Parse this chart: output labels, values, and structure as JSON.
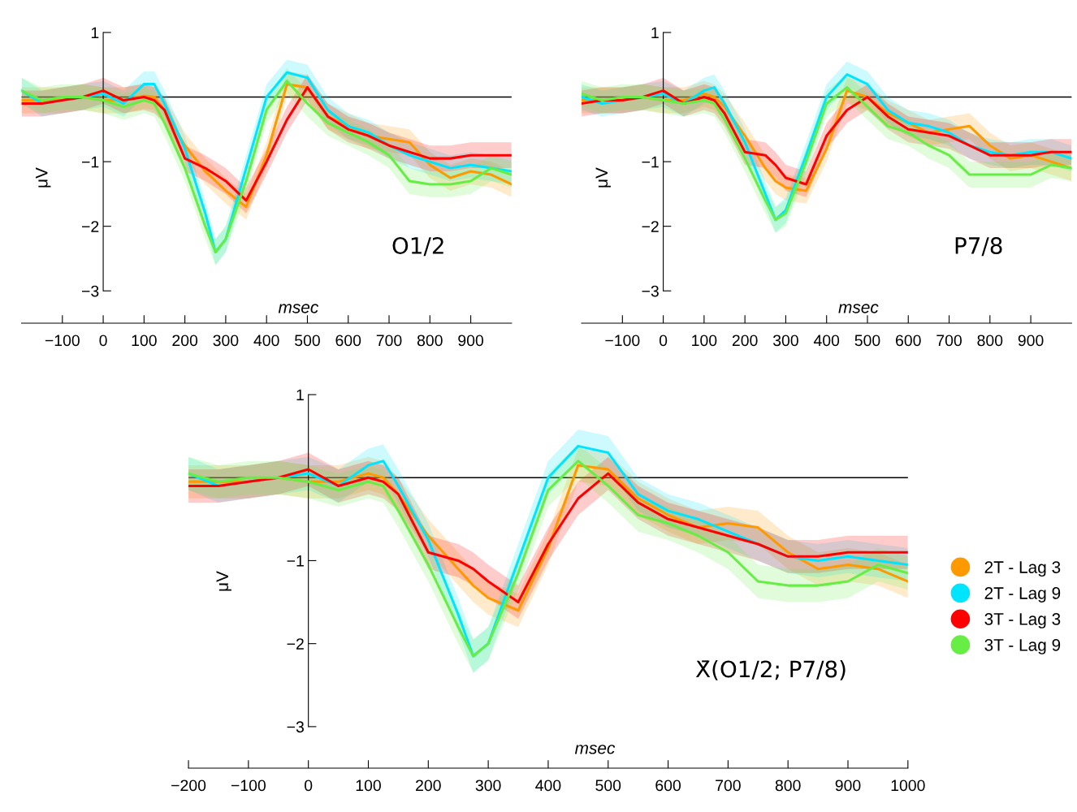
{
  "chart_data": [
    {
      "type": "line",
      "xlabel": "msec",
      "ylabel": "μV",
      "annotations": [
        "O1/2"
      ],
      "x": [
        -200,
        -150,
        -100,
        -50,
        0,
        50,
        100,
        125,
        150,
        200,
        250,
        275,
        300,
        350,
        400,
        450,
        500,
        550,
        600,
        650,
        700,
        750,
        800,
        850,
        900,
        950,
        1000
      ],
      "xlim": [
        -200,
        1000
      ],
      "xticks": [
        -100,
        0,
        100,
        200,
        300,
        400,
        500,
        600,
        700,
        800,
        900
      ],
      "ylim": [
        -3.5,
        1
      ],
      "yticks": [
        -3,
        -2,
        -1,
        1
      ],
      "ref_lines": [
        {
          "axis": "y",
          "value": 0,
          "color": "#000000"
        }
      ],
      "series": [
        {
          "color": "#ff9900",
          "values": [
            -0.05,
            -0.05,
            -0.05,
            0.0,
            -0.05,
            -0.05,
            0.02,
            0.0,
            -0.2,
            -0.75,
            -1.15,
            -1.3,
            -1.45,
            -1.7,
            -0.9,
            0.2,
            0.15,
            -0.3,
            -0.45,
            -0.6,
            -0.65,
            -0.7,
            -1.05,
            -1.25,
            -1.15,
            -1.2,
            -1.35
          ],
          "lower": [
            -0.25,
            -0.25,
            -0.25,
            -0.2,
            -0.25,
            -0.25,
            -0.18,
            -0.2,
            -0.4,
            -0.95,
            -1.35,
            -1.5,
            -1.65,
            -1.9,
            -1.1,
            0.0,
            -0.05,
            -0.5,
            -0.65,
            -0.8,
            -0.85,
            -0.9,
            -1.25,
            -1.45,
            -1.35,
            -1.4,
            -1.55
          ],
          "upper": [
            0.15,
            0.15,
            0.15,
            0.2,
            0.15,
            0.15,
            0.22,
            0.2,
            0.0,
            -0.55,
            -0.95,
            -1.1,
            -1.25,
            -1.5,
            -0.7,
            0.4,
            0.35,
            -0.1,
            -0.25,
            -0.4,
            -0.45,
            -0.5,
            -0.85,
            -1.05,
            -0.95,
            -1.0,
            -1.15
          ]
        },
        {
          "color": "#00e5ff",
          "values": [
            0.1,
            -0.1,
            -0.05,
            0.0,
            0.05,
            -0.1,
            0.2,
            0.2,
            -0.1,
            -0.8,
            -1.8,
            -2.4,
            -2.2,
            -1.1,
            0.0,
            0.38,
            0.3,
            -0.2,
            -0.45,
            -0.55,
            -0.75,
            -0.9,
            -1.0,
            -1.1,
            -1.05,
            -1.1,
            -1.15
          ],
          "lower": [
            -0.1,
            -0.3,
            -0.25,
            -0.2,
            -0.15,
            -0.3,
            0.0,
            0.0,
            -0.3,
            -1.0,
            -2.0,
            -2.6,
            -2.4,
            -1.3,
            -0.2,
            0.18,
            0.1,
            -0.4,
            -0.65,
            -0.75,
            -0.95,
            -1.1,
            -1.2,
            -1.3,
            -1.25,
            -1.3,
            -1.35
          ],
          "upper": [
            0.3,
            0.1,
            0.15,
            0.2,
            0.25,
            0.1,
            0.4,
            0.4,
            0.1,
            -0.6,
            -1.6,
            -2.2,
            -2.0,
            -0.9,
            0.2,
            0.58,
            0.5,
            0.0,
            -0.25,
            -0.35,
            -0.55,
            -0.7,
            -0.8,
            -0.9,
            -0.85,
            -0.9,
            -0.95
          ]
        },
        {
          "color": "#ff0000",
          "values": [
            -0.1,
            -0.1,
            -0.05,
            0.0,
            0.1,
            -0.05,
            0.0,
            -0.05,
            -0.2,
            -0.95,
            -1.1,
            -1.2,
            -1.3,
            -1.6,
            -1.0,
            -0.35,
            0.15,
            -0.3,
            -0.5,
            -0.6,
            -0.75,
            -0.85,
            -0.95,
            -0.95,
            -0.9,
            -0.9,
            -0.9
          ],
          "lower": [
            -0.3,
            -0.3,
            -0.25,
            -0.2,
            -0.1,
            -0.25,
            -0.2,
            -0.25,
            -0.4,
            -1.15,
            -1.3,
            -1.4,
            -1.5,
            -1.8,
            -1.2,
            -0.55,
            -0.05,
            -0.5,
            -0.7,
            -0.8,
            -0.95,
            -1.05,
            -1.15,
            -1.15,
            -1.1,
            -1.1,
            -1.1
          ],
          "upper": [
            0.1,
            0.1,
            0.15,
            0.2,
            0.3,
            0.15,
            0.2,
            0.15,
            0.0,
            -0.75,
            -0.9,
            -1.0,
            -1.1,
            -1.4,
            -0.8,
            -0.15,
            0.35,
            -0.1,
            -0.3,
            -0.4,
            -0.55,
            -0.65,
            -0.75,
            -0.75,
            -0.7,
            -0.7,
            -0.7
          ]
        },
        {
          "color": "#66ee44",
          "values": [
            0.1,
            -0.05,
            0.0,
            0.0,
            -0.05,
            -0.15,
            -0.05,
            -0.1,
            -0.4,
            -1.1,
            -2.0,
            -2.4,
            -2.2,
            -1.3,
            -0.2,
            0.25,
            -0.1,
            -0.4,
            -0.55,
            -0.7,
            -0.9,
            -1.3,
            -1.35,
            -1.35,
            -1.3,
            -1.1,
            -1.2
          ],
          "lower": [
            -0.1,
            -0.25,
            -0.2,
            -0.2,
            -0.25,
            -0.35,
            -0.25,
            -0.3,
            -0.6,
            -1.3,
            -2.2,
            -2.6,
            -2.4,
            -1.5,
            -0.4,
            0.05,
            -0.3,
            -0.6,
            -0.75,
            -0.9,
            -1.1,
            -1.5,
            -1.55,
            -1.55,
            -1.5,
            -1.3,
            -1.4
          ],
          "upper": [
            0.3,
            0.15,
            0.2,
            0.2,
            0.15,
            0.05,
            0.15,
            0.1,
            -0.2,
            -0.9,
            -1.8,
            -2.2,
            -2.0,
            -1.1,
            0.0,
            0.45,
            0.1,
            -0.2,
            -0.35,
            -0.5,
            -0.7,
            -1.1,
            -1.15,
            -1.15,
            -1.1,
            -0.9,
            -1.0
          ]
        }
      ]
    },
    {
      "type": "line",
      "xlabel": "msec",
      "ylabel": "μV",
      "annotations": [
        "P7/8"
      ],
      "x": [
        -200,
        -150,
        -100,
        -50,
        0,
        50,
        100,
        125,
        150,
        200,
        250,
        275,
        300,
        350,
        400,
        450,
        500,
        550,
        600,
        650,
        700,
        750,
        800,
        850,
        900,
        950,
        1000
      ],
      "xlim": [
        -200,
        1000
      ],
      "xticks": [
        -100,
        0,
        100,
        200,
        300,
        400,
        500,
        600,
        700,
        800,
        900
      ],
      "ylim": [
        -3.5,
        1
      ],
      "yticks": [
        -3,
        -2,
        -1,
        1
      ],
      "ref_lines": [
        {
          "axis": "y",
          "value": 0,
          "color": "#000000"
        }
      ],
      "series": [
        {
          "color": "#ff9900",
          "values": [
            -0.05,
            -0.05,
            -0.05,
            0.0,
            -0.05,
            -0.05,
            0.05,
            0.0,
            -0.15,
            -0.6,
            -1.1,
            -1.3,
            -1.4,
            -1.45,
            -0.8,
            0.1,
            0.0,
            -0.25,
            -0.4,
            -0.55,
            -0.5,
            -0.45,
            -0.75,
            -0.95,
            -0.9,
            -1.0,
            -1.1
          ],
          "lower": [
            -0.25,
            -0.25,
            -0.25,
            -0.2,
            -0.25,
            -0.25,
            -0.15,
            -0.2,
            -0.35,
            -0.8,
            -1.3,
            -1.5,
            -1.6,
            -1.65,
            -1.0,
            -0.1,
            -0.2,
            -0.45,
            -0.6,
            -0.75,
            -0.7,
            -0.65,
            -0.95,
            -1.15,
            -1.1,
            -1.2,
            -1.3
          ],
          "upper": [
            0.15,
            0.15,
            0.15,
            0.2,
            0.15,
            0.15,
            0.25,
            0.2,
            0.05,
            -0.4,
            -0.9,
            -1.1,
            -1.2,
            -1.25,
            -0.6,
            0.3,
            0.2,
            -0.05,
            -0.2,
            -0.35,
            -0.3,
            -0.25,
            -0.55,
            -0.75,
            -0.7,
            -0.8,
            -0.9
          ]
        },
        {
          "color": "#00e5ff",
          "values": [
            0.0,
            -0.1,
            -0.05,
            0.0,
            0.05,
            -0.1,
            0.1,
            0.15,
            -0.1,
            -0.7,
            -1.5,
            -1.9,
            -1.75,
            -0.9,
            0.0,
            0.35,
            0.2,
            -0.2,
            -0.4,
            -0.45,
            -0.55,
            -0.75,
            -0.85,
            -0.9,
            -0.85,
            -0.85,
            -0.95
          ],
          "lower": [
            -0.2,
            -0.3,
            -0.25,
            -0.2,
            -0.15,
            -0.3,
            -0.1,
            -0.05,
            -0.3,
            -0.9,
            -1.7,
            -2.1,
            -1.95,
            -1.1,
            -0.2,
            0.15,
            0.0,
            -0.4,
            -0.6,
            -0.65,
            -0.75,
            -0.95,
            -1.05,
            -1.1,
            -1.05,
            -1.05,
            -1.15
          ],
          "upper": [
            0.2,
            0.1,
            0.15,
            0.2,
            0.25,
            0.1,
            0.3,
            0.35,
            0.1,
            -0.5,
            -1.3,
            -1.7,
            -1.55,
            -0.7,
            0.2,
            0.55,
            0.4,
            0.0,
            -0.2,
            -0.25,
            -0.35,
            -0.55,
            -0.65,
            -0.7,
            -0.65,
            -0.65,
            -0.75
          ]
        },
        {
          "color": "#ff0000",
          "values": [
            -0.1,
            -0.05,
            -0.05,
            0.0,
            0.1,
            -0.1,
            0.0,
            -0.05,
            -0.25,
            -0.85,
            -0.9,
            -1.05,
            -1.25,
            -1.35,
            -0.6,
            -0.2,
            0.0,
            -0.3,
            -0.5,
            -0.55,
            -0.6,
            -0.75,
            -0.9,
            -0.9,
            -0.9,
            -0.85,
            -0.85
          ],
          "lower": [
            -0.3,
            -0.25,
            -0.25,
            -0.2,
            -0.1,
            -0.3,
            -0.2,
            -0.25,
            -0.45,
            -1.05,
            -1.1,
            -1.25,
            -1.45,
            -1.55,
            -0.8,
            -0.4,
            -0.2,
            -0.5,
            -0.7,
            -0.75,
            -0.8,
            -0.95,
            -1.1,
            -1.1,
            -1.1,
            -1.05,
            -1.05
          ],
          "upper": [
            0.1,
            0.15,
            0.15,
            0.2,
            0.3,
            0.1,
            0.2,
            0.15,
            -0.05,
            -0.65,
            -0.7,
            -0.85,
            -1.05,
            -1.15,
            -0.4,
            0.0,
            0.2,
            -0.1,
            -0.3,
            -0.35,
            -0.4,
            -0.55,
            -0.7,
            -0.7,
            -0.7,
            -0.65,
            -0.65
          ]
        },
        {
          "color": "#66ee44",
          "values": [
            0.05,
            -0.05,
            0.0,
            0.0,
            -0.05,
            -0.1,
            -0.05,
            -0.1,
            -0.35,
            -0.95,
            -1.6,
            -1.9,
            -1.8,
            -1.0,
            -0.1,
            0.15,
            -0.15,
            -0.45,
            -0.55,
            -0.75,
            -0.9,
            -1.2,
            -1.2,
            -1.2,
            -1.2,
            -1.05,
            -1.1
          ],
          "lower": [
            -0.15,
            -0.25,
            -0.2,
            -0.2,
            -0.25,
            -0.3,
            -0.25,
            -0.3,
            -0.55,
            -1.15,
            -1.8,
            -2.1,
            -2.0,
            -1.2,
            -0.3,
            -0.05,
            -0.35,
            -0.65,
            -0.75,
            -0.95,
            -1.1,
            -1.4,
            -1.4,
            -1.4,
            -1.4,
            -1.25,
            -1.3
          ],
          "upper": [
            0.25,
            0.15,
            0.2,
            0.2,
            0.15,
            0.1,
            0.15,
            0.1,
            -0.15,
            -0.75,
            -1.4,
            -1.7,
            -1.6,
            -0.8,
            0.1,
            0.35,
            0.05,
            -0.25,
            -0.35,
            -0.55,
            -0.7,
            -1.0,
            -1.0,
            -1.0,
            -1.0,
            -0.85,
            -0.9
          ]
        }
      ]
    },
    {
      "type": "line",
      "xlabel": "msec",
      "ylabel": "μV",
      "annotations": [
        "X̄(O1/2; P7/8)"
      ],
      "legend": "right",
      "x": [
        -200,
        -150,
        -100,
        -50,
        0,
        50,
        100,
        125,
        150,
        200,
        250,
        275,
        300,
        350,
        400,
        450,
        500,
        550,
        600,
        650,
        700,
        750,
        800,
        850,
        900,
        950,
        1000
      ],
      "xlim": [
        -200,
        1000
      ],
      "xticks": [
        -200,
        -100,
        0,
        100,
        200,
        300,
        400,
        500,
        600,
        700,
        800,
        900,
        1000
      ],
      "ylim": [
        -3.5,
        1
      ],
      "yticks": [
        -3,
        -2,
        -1,
        1
      ],
      "ref_lines": [
        {
          "axis": "y",
          "value": 0,
          "color": "#000000"
        }
      ],
      "series": [
        {
          "name": "2T - Lag 3",
          "color": "#ff9900",
          "values": [
            -0.05,
            -0.05,
            -0.05,
            0.0,
            -0.05,
            -0.05,
            0.05,
            0.0,
            -0.2,
            -0.7,
            -1.1,
            -1.3,
            -1.45,
            -1.6,
            -0.85,
            0.15,
            0.1,
            -0.25,
            -0.45,
            -0.6,
            -0.55,
            -0.6,
            -0.9,
            -1.1,
            -1.05,
            -1.1,
            -1.25
          ],
          "lower": [
            -0.25,
            -0.25,
            -0.25,
            -0.2,
            -0.25,
            -0.25,
            -0.15,
            -0.2,
            -0.4,
            -0.9,
            -1.3,
            -1.5,
            -1.65,
            -1.8,
            -1.05,
            -0.05,
            -0.1,
            -0.45,
            -0.65,
            -0.8,
            -0.75,
            -0.8,
            -1.1,
            -1.3,
            -1.25,
            -1.3,
            -1.45
          ],
          "upper": [
            0.15,
            0.15,
            0.15,
            0.2,
            0.15,
            0.15,
            0.25,
            0.2,
            0.0,
            -0.5,
            -0.9,
            -1.1,
            -1.25,
            -1.4,
            -0.65,
            0.35,
            0.3,
            -0.05,
            -0.25,
            -0.4,
            -0.35,
            -0.4,
            -0.7,
            -0.9,
            -0.85,
            -0.9,
            -1.05
          ]
        },
        {
          "name": "2T - Lag 9",
          "color": "#00e5ff",
          "values": [
            0.05,
            -0.1,
            -0.05,
            0.0,
            0.05,
            -0.1,
            0.15,
            0.2,
            -0.1,
            -0.75,
            -1.65,
            -2.15,
            -2.0,
            -1.0,
            0.0,
            0.38,
            0.3,
            -0.2,
            -0.4,
            -0.5,
            -0.65,
            -0.8,
            -0.95,
            -1.0,
            -0.95,
            -1.0,
            -1.05
          ],
          "lower": [
            -0.15,
            -0.3,
            -0.25,
            -0.2,
            -0.15,
            -0.3,
            -0.05,
            0.0,
            -0.3,
            -0.95,
            -1.85,
            -2.35,
            -2.2,
            -1.2,
            -0.2,
            0.18,
            0.1,
            -0.4,
            -0.6,
            -0.7,
            -0.85,
            -1.0,
            -1.15,
            -1.2,
            -1.15,
            -1.2,
            -1.25
          ],
          "upper": [
            0.25,
            0.1,
            0.15,
            0.2,
            0.25,
            0.1,
            0.35,
            0.4,
            0.1,
            -0.55,
            -1.45,
            -1.95,
            -1.8,
            -0.8,
            0.2,
            0.58,
            0.5,
            0.0,
            -0.2,
            -0.3,
            -0.45,
            -0.6,
            -0.75,
            -0.8,
            -0.75,
            -0.8,
            -0.85
          ]
        },
        {
          "name": "3T - Lag 3",
          "color": "#ff0000",
          "values": [
            -0.1,
            -0.1,
            -0.05,
            0.0,
            0.1,
            -0.1,
            0.0,
            -0.05,
            -0.2,
            -0.9,
            -1.0,
            -1.1,
            -1.25,
            -1.5,
            -0.8,
            -0.25,
            0.05,
            -0.3,
            -0.5,
            -0.6,
            -0.7,
            -0.8,
            -0.95,
            -0.95,
            -0.9,
            -0.9,
            -0.9
          ],
          "lower": [
            -0.3,
            -0.3,
            -0.25,
            -0.2,
            -0.1,
            -0.3,
            -0.2,
            -0.25,
            -0.4,
            -1.1,
            -1.2,
            -1.3,
            -1.45,
            -1.7,
            -1.0,
            -0.45,
            -0.15,
            -0.5,
            -0.7,
            -0.8,
            -0.9,
            -1.0,
            -1.15,
            -1.15,
            -1.1,
            -1.1,
            -1.1
          ],
          "upper": [
            0.1,
            0.1,
            0.15,
            0.2,
            0.3,
            0.1,
            0.2,
            0.15,
            0.0,
            -0.7,
            -0.8,
            -0.9,
            -1.05,
            -1.3,
            -0.6,
            -0.05,
            0.25,
            -0.1,
            -0.3,
            -0.4,
            -0.5,
            -0.6,
            -0.75,
            -0.75,
            -0.7,
            -0.7,
            -0.7
          ]
        },
        {
          "name": "3T - Lag 9",
          "color": "#66ee44",
          "values": [
            0.05,
            -0.05,
            0.0,
            0.0,
            -0.05,
            -0.15,
            -0.05,
            -0.1,
            -0.4,
            -1.05,
            -1.8,
            -2.15,
            -2.0,
            -1.15,
            -0.15,
            0.2,
            -0.1,
            -0.45,
            -0.55,
            -0.7,
            -0.9,
            -1.25,
            -1.3,
            -1.3,
            -1.25,
            -1.05,
            -1.15
          ],
          "lower": [
            -0.15,
            -0.25,
            -0.2,
            -0.2,
            -0.25,
            -0.35,
            -0.25,
            -0.3,
            -0.6,
            -1.25,
            -2.0,
            -2.35,
            -2.2,
            -1.35,
            -0.35,
            0.0,
            -0.3,
            -0.65,
            -0.75,
            -0.9,
            -1.1,
            -1.45,
            -1.5,
            -1.5,
            -1.45,
            -1.25,
            -1.35
          ],
          "upper": [
            0.25,
            0.15,
            0.2,
            0.2,
            0.15,
            0.05,
            0.15,
            0.1,
            -0.2,
            -0.85,
            -1.6,
            -1.95,
            -1.8,
            -0.95,
            0.05,
            0.4,
            0.1,
            -0.25,
            -0.35,
            -0.5,
            -0.7,
            -1.05,
            -1.1,
            -1.1,
            -1.05,
            -0.85,
            -0.95
          ]
        }
      ]
    }
  ]
}
